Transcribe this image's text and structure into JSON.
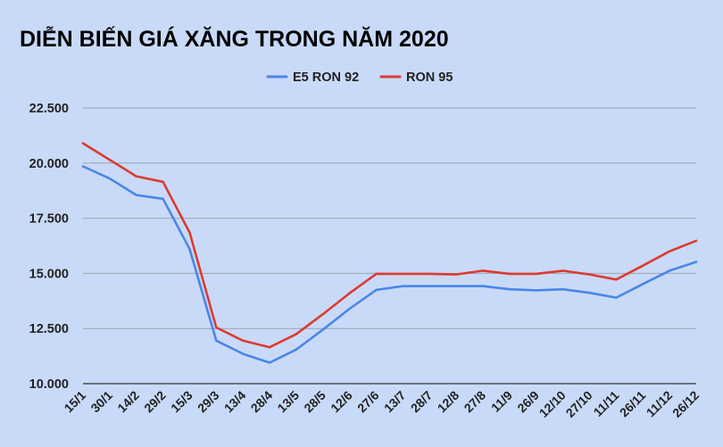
{
  "chart_data": {
    "type": "line",
    "title": "DIỄN BIẾN GIÁ XĂNG TRONG NĂM 2020",
    "xlabel": "",
    "ylabel": "",
    "categories": [
      "15/1",
      "30/1",
      "14/2",
      "29/2",
      "15/3",
      "29/3",
      "13/4",
      "28/4",
      "13/5",
      "28/5",
      "12/6",
      "27/6",
      "13/7",
      "28/7",
      "12/8",
      "27/8",
      "11/9",
      "26/9",
      "12/10",
      "27/10",
      "11/11",
      "26/11",
      "11/12",
      "26/12"
    ],
    "series": [
      {
        "name": "E5 RON 92",
        "color": "#4a86e8",
        "values": [
          19850,
          19300,
          18550,
          18380,
          16100,
          11950,
          11350,
          10950,
          11550,
          12450,
          13400,
          14250,
          14420,
          14420,
          14420,
          14420,
          14280,
          14230,
          14280,
          14120,
          13900,
          14520,
          15120,
          15520
        ]
      },
      {
        "name": "RON 95",
        "color": "#db3b31",
        "values": [
          20900,
          20150,
          19400,
          19150,
          16850,
          12550,
          11950,
          11650,
          12250,
          13150,
          14100,
          14980,
          14980,
          14980,
          14950,
          15120,
          14980,
          14980,
          15120,
          14950,
          14720,
          15350,
          16000,
          16480
        ]
      }
    ],
    "ylim": [
      10000,
      22500
    ],
    "yticks": [
      10000,
      12500,
      15000,
      17500,
      20000,
      22500
    ],
    "ytick_labels": [
      "10.000",
      "12.500",
      "15.000",
      "17.500",
      "20.000",
      "22.500"
    ],
    "grid": true,
    "legend_position": "top-center"
  }
}
